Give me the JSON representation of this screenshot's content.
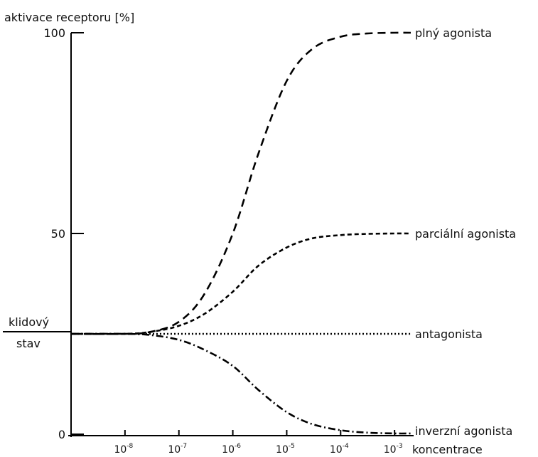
{
  "chart_data": {
    "type": "line",
    "ylabel": "aktivace receptoru [%]",
    "xlabel": "koncentrace",
    "x_scale": "log",
    "xlim": [
      1e-09,
      0.002
    ],
    "ylim": [
      0,
      100
    ],
    "y_ticks": [
      {
        "value": 0,
        "label": "0"
      },
      {
        "value": 50,
        "label": "50"
      },
      {
        "value": 100,
        "label": "100"
      }
    ],
    "x_ticks": [
      {
        "value": 1e-08,
        "base": "10",
        "exp": "-8"
      },
      {
        "value": 1e-07,
        "base": "10",
        "exp": "-7"
      },
      {
        "value": 1e-06,
        "base": "10",
        "exp": "-6"
      },
      {
        "value": 1e-05,
        "base": "10",
        "exp": "-5"
      },
      {
        "value": 0.0001,
        "base": "10",
        "exp": "-4"
      },
      {
        "value": 0.001,
        "base": "10",
        "exp": "-3"
      }
    ],
    "baseline": {
      "value": 25,
      "label_line1": "klidový",
      "label_line2": "stav"
    },
    "series": [
      {
        "name": "plný agonista",
        "style": "dashed-long",
        "x": [
          1e-09,
          1e-08,
          3e-08,
          1e-07,
          3e-07,
          1e-06,
          3e-06,
          1e-05,
          3e-05,
          0.0001,
          0.0003,
          0.001,
          0.002
        ],
        "y": [
          25,
          25,
          25.5,
          28,
          35,
          50,
          70,
          88,
          96,
          99,
          99.8,
          100,
          100
        ]
      },
      {
        "name": "parciální agonista",
        "style": "dashed-short",
        "x": [
          1e-09,
          1e-08,
          3e-08,
          1e-07,
          3e-07,
          1e-06,
          3e-06,
          1e-05,
          3e-05,
          0.0001,
          0.0003,
          0.001,
          0.002
        ],
        "y": [
          25,
          25,
          25.5,
          27,
          30,
          35.5,
          42,
          46.5,
          48.8,
          49.6,
          49.9,
          50,
          50
        ]
      },
      {
        "name": "antagonista",
        "style": "dotted",
        "x": [
          1e-09,
          0.002
        ],
        "y": [
          25,
          25
        ]
      },
      {
        "name": "inverzní agonista",
        "style": "dash-dot",
        "x": [
          1e-09,
          1e-08,
          3e-08,
          1e-07,
          3e-07,
          1e-06,
          3e-06,
          1e-05,
          3e-05,
          0.0001,
          0.0003,
          0.001,
          0.002
        ],
        "y": [
          25,
          25,
          24.7,
          23.5,
          21,
          17,
          11,
          5.5,
          2.5,
          1,
          0.4,
          0.2,
          0.2
        ]
      }
    ]
  }
}
